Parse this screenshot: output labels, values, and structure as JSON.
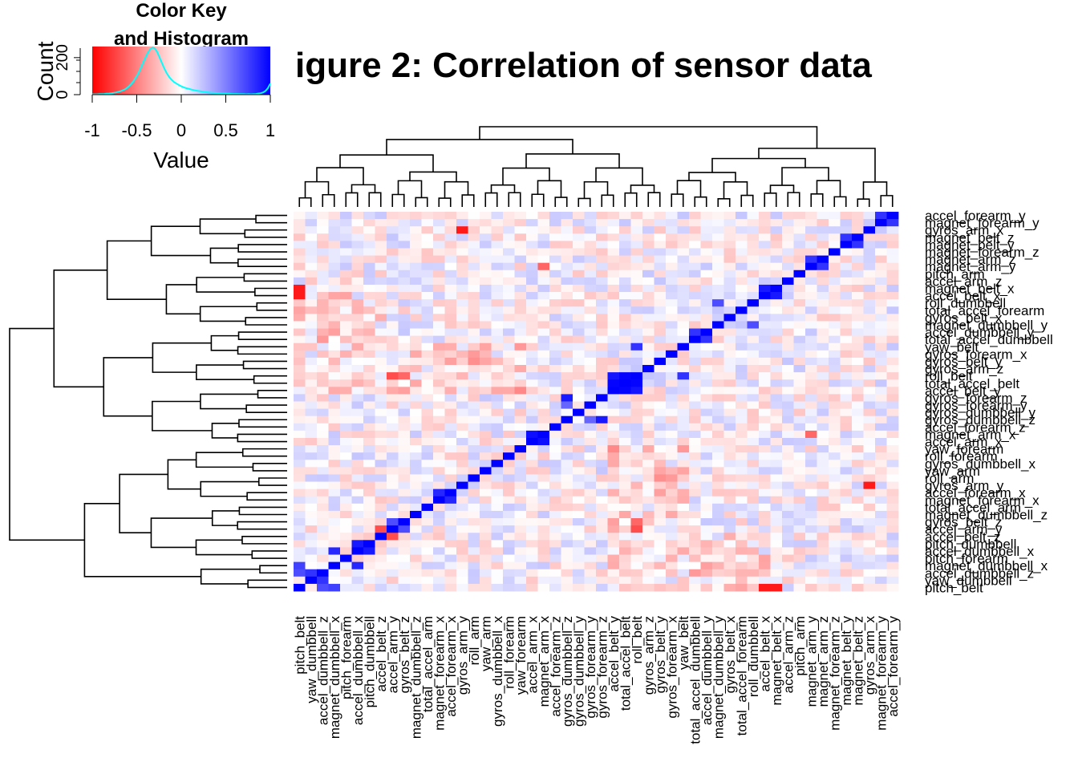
{
  "title": "igure 2: Correlation of sensor data",
  "color_key": {
    "title_line1": "Color Key",
    "title_line2": "and Histogram",
    "ylabel": "Count",
    "yticks": [
      "0",
      "200"
    ],
    "xlabel": "Value",
    "xticks": [
      "-1",
      "-0.5",
      "0",
      "0.5",
      "1"
    ],
    "colors": {
      "low": "#ff0000",
      "mid": "#ffffff",
      "high": "#0000ff",
      "histogram": "#00ffff"
    },
    "histogram_values": [
      2,
      2,
      2,
      3,
      3,
      4,
      5,
      6,
      8,
      10,
      12,
      16,
      20,
      25,
      32,
      42,
      55,
      70,
      90,
      112,
      140,
      170,
      198,
      225,
      245,
      255,
      250,
      230,
      200,
      170,
      140,
      115,
      95,
      80,
      68,
      60,
      52,
      45,
      40,
      35,
      32,
      28,
      25,
      22,
      20,
      18,
      16,
      14,
      12,
      11,
      10,
      9,
      8,
      7,
      6,
      6,
      5,
      5,
      4,
      4,
      4,
      3,
      3,
      3,
      2,
      3,
      2,
      3,
      4,
      6,
      8,
      12,
      20,
      35,
      60
    ]
  },
  "chart_data": {
    "type": "heatmap",
    "title": "igure 2: Correlation of sensor data",
    "value_range": [
      -1,
      1
    ],
    "column_labels": [
      "pitch_belt",
      "yaw_dumbbell",
      "accel_dumbbell_z",
      "magnet_dumbbell_x",
      "pitch_forearm",
      "accel_dumbbell_x",
      "pitch_dumbbell",
      "accel_belt_z",
      "accel_arm_y",
      "gyros_belt_z",
      "magnet_dumbbell_z",
      "total_accel_arm",
      "magnet_forearm_x",
      "accel_forearm_x",
      "gyros_arm_y",
      "roll_arm",
      "yaw_arm",
      "gyros_dumbbell_x",
      "roll_forearm",
      "yaw_forearm",
      "accel_arm_x",
      "magnet_arm_x",
      "accel_forearm_z",
      "gyros_dumbbell_z",
      "gyros_dumbbell_y",
      "gyros_forearm_y",
      "gyros_forearm_z",
      "accel_belt_y",
      "total_accel_belt",
      "roll_belt",
      "gyros_arm_z",
      "gyros_belt_y",
      "gyros_forearm_x",
      "yaw_belt",
      "total_accel_dumbbell",
      "accel_dumbbell_y",
      "magnet_dumbbell_y",
      "gyros_belt_x",
      "total_accel_forearm",
      "roll_dumbbell",
      "accel_belt_x",
      "magnet_belt_x",
      "accel_arm_z",
      "pitch_arm",
      "magnet_arm_y",
      "magnet_arm_z",
      "magnet_forearm_z",
      "magnet_belt_y",
      "magnet_belt_z",
      "gyros_arm_x",
      "magnet_forearm_y",
      "accel_forearm_y"
    ],
    "row_labels": [
      "accel_forearm_y",
      "magnet_forearm_y",
      "gyros_arm_x",
      "magnet_belt_z",
      "magnet_belt_y",
      "magnet_forearm_z",
      "magnet_arm_z",
      "magnet_arm_y",
      "pitch_arm",
      "accel_arm_z",
      "magnet_belt_x",
      "accel_belt_x",
      "roll_dumbbell",
      "total_accel_forearm",
      "gyros_belt_x",
      "magnet_dumbbell_y",
      "accel_dumbbell_y",
      "total_accel_dumbbell",
      "yaw_belt",
      "gyros_forearm_x",
      "gyros_belt_y",
      "gyros_arm_z",
      "roll_belt",
      "total_accel_belt",
      "accel_belt_y",
      "gyros_forearm_z",
      "gyros_forearm_y",
      "gyros_dumbbell_y",
      "gyros_dumbbell_z",
      "accel_forearm_z",
      "magnet_arm_x",
      "accel_arm_x",
      "yaw_forearm",
      "roll_forearm",
      "gyros_dumbbell_x",
      "yaw_arm",
      "roll_arm",
      "gyros_arm_y",
      "accel_forearm_x",
      "magnet_forearm_x",
      "total_accel_arm",
      "magnet_dumbbell_z",
      "gyros_belt_z",
      "accel_arm_y",
      "accel_belt_z",
      "pitch_dumbbell",
      "accel_dumbbell_x",
      "pitch_forearm",
      "magnet_dumbbell_x",
      "accel_dumbbell_z",
      "yaw_dumbbell",
      "pitch_belt"
    ],
    "strong_correlations": [
      {
        "a": "pitch_belt",
        "b": "magnet_dumbbell_x",
        "value": 0.75
      },
      {
        "a": "pitch_belt",
        "b": "accel_dumbbell_z",
        "value": 0.7
      },
      {
        "a": "yaw_dumbbell",
        "b": "accel_dumbbell_z",
        "value": 0.8
      },
      {
        "a": "magnet_dumbbell_x",
        "b": "accel_dumbbell_x",
        "value": 0.85
      },
      {
        "a": "pitch_dumbbell",
        "b": "accel_dumbbell_x",
        "value": 0.9
      },
      {
        "a": "accel_arm_y",
        "b": "gyros_belt_z",
        "value": 0.7
      },
      {
        "a": "magnet_forearm_x",
        "b": "accel_forearm_x",
        "value": 0.85
      },
      {
        "a": "accel_arm_x",
        "b": "magnet_arm_x",
        "value": 0.95
      },
      {
        "a": "gyros_dumbbell_z",
        "b": "gyros_forearm_z",
        "value": 0.9
      },
      {
        "a": "accel_belt_y",
        "b": "total_accel_belt",
        "value": 0.98
      },
      {
        "a": "accel_belt_y",
        "b": "roll_belt",
        "value": 0.92
      },
      {
        "a": "total_accel_belt",
        "b": "roll_belt",
        "value": 0.98
      },
      {
        "a": "roll_belt",
        "b": "yaw_belt",
        "value": 0.8
      },
      {
        "a": "total_accel_dumbbell",
        "b": "accel_dumbbell_y",
        "value": 0.8
      },
      {
        "a": "roll_dumbbell",
        "b": "magnet_dumbbell_y",
        "value": 0.7
      },
      {
        "a": "accel_belt_x",
        "b": "magnet_belt_x",
        "value": 0.9
      },
      {
        "a": "magnet_arm_y",
        "b": "magnet_arm_z",
        "value": 0.8
      },
      {
        "a": "magnet_belt_y",
        "b": "magnet_belt_z",
        "value": 0.8
      },
      {
        "a": "magnet_forearm_y",
        "b": "accel_forearm_y",
        "value": 0.8
      },
      {
        "a": "accel_arm_x",
        "b": "magnet_arm_x",
        "value": 0.95
      },
      {
        "a": "roll_belt",
        "b": "accel_arm_y",
        "value": -0.7
      },
      {
        "a": "roll_belt",
        "b": "gyros_belt_z",
        "value": -0.6
      },
      {
        "a": "accel_belt_z",
        "b": "accel_arm_y",
        "value": -0.7
      },
      {
        "a": "magnet_belt_x",
        "b": "pitch_belt",
        "value": -0.9
      },
      {
        "a": "accel_belt_x",
        "b": "pitch_belt",
        "value": -0.9
      },
      {
        "a": "magnet_arm_x",
        "b": "magnet_arm_y",
        "value": -0.6
      },
      {
        "a": "gyros_arm_x",
        "b": "gyros_arm_y",
        "value": -0.9
      },
      {
        "a": "gyros_dumbbell_z",
        "b": "gyros_forearm_y",
        "value": 0.6
      },
      {
        "a": "yaw_belt",
        "b": "roll_belt",
        "value": 0.8
      },
      {
        "a": "gyros_arm_y",
        "b": "gyros_arm_x",
        "value": -0.9
      }
    ]
  }
}
